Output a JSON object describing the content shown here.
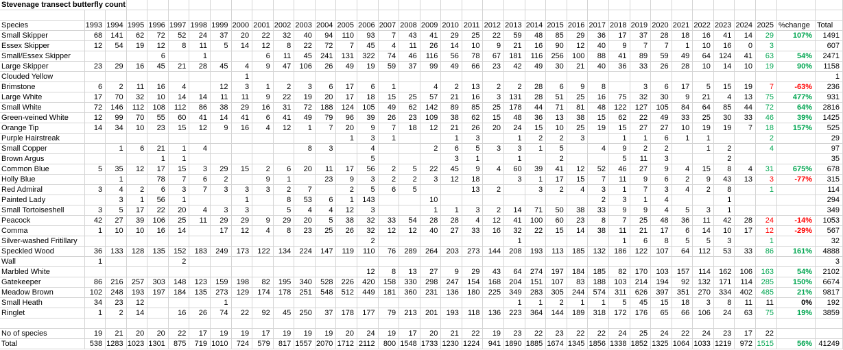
{
  "title": "Stevenage transect butterfly count",
  "header": {
    "species": "Species",
    "years": [
      "1993",
      "1994",
      "1995",
      "1996",
      "1997",
      "1998",
      "1999",
      "2000",
      "2001",
      "2002",
      "2003",
      "2004",
      "2005",
      "2006",
      "2007",
      "2008",
      "2009",
      "2010",
      "2011",
      "2012",
      "2013",
      "2014",
      "2015",
      "2016",
      "2017",
      "2018",
      "2019",
      "2020",
      "2021",
      "2022",
      "2023",
      "2024",
      "2025"
    ],
    "pct_change": "%change",
    "total": "Total"
  },
  "colors": {
    "positive": "#00a550",
    "negative": "#ff0000",
    "neutral": "#000000",
    "gridline": "#d4d4d4"
  },
  "species_rows": [
    {
      "name": "Small Skipper",
      "values": [
        68,
        141,
        62,
        72,
        52,
        24,
        37,
        20,
        22,
        32,
        40,
        94,
        110,
        93,
        7,
        43,
        41,
        29,
        25,
        22,
        59,
        48,
        85,
        29,
        36,
        17,
        37,
        28,
        18,
        16,
        41,
        14,
        29
      ],
      "pct": "107%",
      "total": 1491,
      "c25": "g"
    },
    {
      "name": "Essex Skipper",
      "values": [
        12,
        54,
        19,
        12,
        8,
        11,
        5,
        14,
        12,
        8,
        22,
        72,
        7,
        45,
        4,
        11,
        26,
        14,
        10,
        9,
        21,
        16,
        90,
        12,
        40,
        9,
        7,
        7,
        1,
        10,
        16,
        0,
        3
      ],
      "pct": "",
      "total": 607,
      "c25": "g"
    },
    {
      "name": "Small/Essex Skipper",
      "values": [
        "",
        "",
        "",
        6,
        "",
        1,
        "",
        "",
        6,
        11,
        45,
        241,
        131,
        322,
        74,
        46,
        116,
        56,
        78,
        67,
        181,
        116,
        256,
        100,
        88,
        41,
        89,
        59,
        49,
        64,
        124,
        41,
        63
      ],
      "pct": "54%",
      "total": 2471,
      "c25": "g"
    },
    {
      "name": "Large Skipper",
      "values": [
        23,
        29,
        16,
        45,
        21,
        28,
        45,
        4,
        9,
        47,
        106,
        26,
        49,
        19,
        59,
        37,
        99,
        49,
        66,
        23,
        42,
        49,
        30,
        21,
        40,
        36,
        33,
        26,
        28,
        10,
        14,
        10,
        19
      ],
      "pct": "90%",
      "total": 1158,
      "c25": "g"
    },
    {
      "name": "Clouded Yellow",
      "values": [
        "",
        "",
        "",
        "",
        "",
        "",
        "",
        1,
        "",
        "",
        "",
        "",
        "",
        "",
        "",
        "",
        "",
        "",
        "",
        "",
        "",
        "",
        "",
        "",
        "",
        "",
        "",
        "",
        "",
        "",
        "",
        "",
        ""
      ],
      "pct": "",
      "total": 1,
      "c25": ""
    },
    {
      "name": "Brimstone",
      "values": [
        6,
        2,
        11,
        16,
        4,
        "",
        12,
        3,
        1,
        2,
        3,
        6,
        17,
        6,
        1,
        "",
        4,
        2,
        13,
        2,
        2,
        28,
        6,
        9,
        8,
        "",
        3,
        6,
        17,
        5,
        15,
        19,
        7
      ],
      "pct": "-63%",
      "total": 236,
      "c25": "r"
    },
    {
      "name": "Large White",
      "values": [
        17,
        70,
        32,
        10,
        14,
        14,
        11,
        11,
        9,
        22,
        19,
        20,
        17,
        18,
        15,
        25,
        57,
        21,
        16,
        3,
        131,
        28,
        51,
        25,
        16,
        75,
        32,
        30,
        9,
        21,
        4,
        13,
        75
      ],
      "pct": "477%",
      "total": 931,
      "c25": "g"
    },
    {
      "name": "Small White",
      "values": [
        72,
        146,
        112,
        108,
        112,
        86,
        38,
        29,
        16,
        31,
        72,
        188,
        124,
        105,
        49,
        62,
        142,
        89,
        85,
        25,
        178,
        44,
        71,
        81,
        48,
        122,
        127,
        105,
        84,
        64,
        85,
        44,
        72
      ],
      "pct": "64%",
      "total": 2816,
      "c25": "g"
    },
    {
      "name": "Green-veined White",
      "values": [
        12,
        99,
        70,
        55,
        60,
        41,
        14,
        41,
        6,
        41,
        49,
        79,
        96,
        39,
        26,
        23,
        109,
        38,
        62,
        15,
        48,
        36,
        13,
        38,
        15,
        62,
        22,
        49,
        33,
        25,
        30,
        33,
        46
      ],
      "pct": "39%",
      "total": 1425,
      "c25": "g"
    },
    {
      "name": "Orange Tip",
      "values": [
        14,
        34,
        10,
        23,
        15,
        12,
        9,
        16,
        4,
        12,
        1,
        7,
        20,
        9,
        7,
        18,
        12,
        21,
        26,
        20,
        24,
        15,
        10,
        25,
        19,
        15,
        27,
        27,
        10,
        19,
        19,
        7,
        18
      ],
      "pct": "157%",
      "total": 525,
      "c25": "g"
    },
    {
      "name": "Purple Hairstreak",
      "values": [
        "",
        "",
        "",
        "",
        "",
        "",
        "",
        "",
        "",
        "",
        "",
        "",
        1,
        3,
        1,
        "",
        "",
        1,
        3,
        "",
        1,
        2,
        2,
        3,
        "",
        1,
        1,
        6,
        1,
        1,
        "",
        "",
        2
      ],
      "pct": "",
      "total": 29,
      "c25": "g"
    },
    {
      "name": "Small Copper",
      "values": [
        "",
        1,
        6,
        21,
        1,
        4,
        "",
        "",
        "",
        "",
        8,
        3,
        "",
        4,
        "",
        "",
        2,
        6,
        5,
        3,
        3,
        1,
        5,
        "",
        4,
        9,
        2,
        2,
        "",
        1,
        2,
        "",
        4
      ],
      "pct": "",
      "total": 97,
      "c25": "g"
    },
    {
      "name": "Brown Argus",
      "values": [
        "",
        "",
        "",
        1,
        1,
        "",
        "",
        "",
        "",
        "",
        "",
        "",
        "",
        5,
        "",
        "",
        "",
        3,
        1,
        "",
        1,
        "",
        2,
        "",
        "",
        5,
        11,
        3,
        "",
        "",
        2,
        "",
        ""
      ],
      "pct": "",
      "total": 35,
      "c25": ""
    },
    {
      "name": "Common Blue",
      "values": [
        5,
        35,
        12,
        17,
        15,
        3,
        29,
        15,
        2,
        6,
        20,
        11,
        17,
        56,
        2,
        5,
        22,
        45,
        9,
        4,
        60,
        39,
        41,
        12,
        52,
        46,
        27,
        9,
        4,
        15,
        8,
        4,
        31
      ],
      "pct": "675%",
      "total": 678,
      "c25": "g"
    },
    {
      "name": "Holly Blue",
      "values": [
        "",
        1,
        "",
        78,
        7,
        6,
        2,
        "",
        9,
        1,
        "",
        23,
        9,
        3,
        2,
        2,
        3,
        12,
        18,
        "",
        3,
        1,
        17,
        15,
        7,
        11,
        9,
        6,
        2,
        9,
        43,
        13,
        3
      ],
      "pct": "-77%",
      "total": 315,
      "c25": "r"
    },
    {
      "name": "Red Admiral",
      "values": [
        3,
        4,
        2,
        6,
        3,
        7,
        3,
        3,
        3,
        2,
        7,
        "",
        2,
        5,
        6,
        5,
        "",
        "",
        13,
        2,
        "",
        3,
        2,
        4,
        3,
        1,
        7,
        3,
        4,
        2,
        8,
        "",
        1
      ],
      "pct": "",
      "total": 114,
      "c25": "g"
    },
    {
      "name": "Painted Lady",
      "values": [
        "",
        3,
        1,
        56,
        1,
        "",
        "",
        1,
        "",
        8,
        53,
        6,
        1,
        143,
        "",
        "",
        10,
        "",
        "",
        "",
        "",
        "",
        "",
        "",
        2,
        3,
        1,
        4,
        "",
        "",
        1,
        "",
        ""
      ],
      "pct": "",
      "total": 294,
      "c25": ""
    },
    {
      "name": "Small Tortoiseshell",
      "values": [
        3,
        5,
        17,
        22,
        20,
        4,
        3,
        3,
        "",
        5,
        4,
        4,
        12,
        3,
        "",
        "",
        1,
        1,
        3,
        2,
        14,
        71,
        50,
        38,
        33,
        9,
        9,
        4,
        5,
        3,
        1,
        "",
        ""
      ],
      "pct": "",
      "total": 349,
      "c25": ""
    },
    {
      "name": "Peacock",
      "values": [
        42,
        27,
        39,
        106,
        25,
        11,
        29,
        29,
        9,
        29,
        20,
        5,
        38,
        32,
        33,
        54,
        28,
        28,
        4,
        12,
        41,
        100,
        60,
        23,
        8,
        7,
        25,
        48,
        36,
        11,
        42,
        28,
        24
      ],
      "pct": "-14%",
      "total": 1053,
      "c25": "r"
    },
    {
      "name": "Comma",
      "values": [
        1,
        10,
        10,
        16,
        14,
        "",
        17,
        12,
        4,
        8,
        23,
        25,
        26,
        32,
        12,
        12,
        40,
        27,
        33,
        16,
        32,
        22,
        15,
        14,
        38,
        11,
        21,
        17,
        6,
        14,
        10,
        17,
        12
      ],
      "pct": "-29%",
      "total": 567,
      "c25": "r"
    },
    {
      "name": "Silver-washed Fritillary",
      "values": [
        "",
        "",
        "",
        "",
        "",
        "",
        "",
        "",
        "",
        "",
        "",
        "",
        "",
        2,
        "",
        "",
        "",
        "",
        "",
        "",
        1,
        "",
        "",
        "",
        "",
        1,
        6,
        8,
        5,
        5,
        3,
        "",
        1
      ],
      "pct": "",
      "total": 32,
      "c25": "g"
    },
    {
      "name": "Speckled Wood",
      "values": [
        36,
        133,
        128,
        135,
        152,
        183,
        249,
        173,
        122,
        134,
        224,
        147,
        119,
        110,
        76,
        289,
        264,
        203,
        273,
        144,
        208,
        193,
        113,
        185,
        132,
        186,
        122,
        107,
        64,
        112,
        53,
        33,
        86
      ],
      "pct": "161%",
      "total": 4888,
      "c25": "g"
    },
    {
      "name": "Wall",
      "values": [
        1,
        "",
        "",
        "",
        2,
        "",
        "",
        "",
        "",
        "",
        "",
        "",
        "",
        "",
        "",
        "",
        "",
        "",
        "",
        "",
        "",
        "",
        "",
        "",
        "",
        "",
        "",
        "",
        "",
        "",
        "",
        "",
        ""
      ],
      "pct": "",
      "total": 3,
      "c25": ""
    },
    {
      "name": "Marbled White",
      "values": [
        "",
        "",
        "",
        "",
        "",
        "",
        "",
        "",
        "",
        "",
        "",
        "",
        "",
        12,
        8,
        13,
        27,
        9,
        29,
        43,
        64,
        274,
        197,
        184,
        185,
        82,
        170,
        103,
        157,
        114,
        162,
        106,
        163
      ],
      "pct": "54%",
      "total": 2102,
      "c25": "g"
    },
    {
      "name": "Gatekeeper",
      "values": [
        86,
        216,
        257,
        303,
        148,
        123,
        159,
        198,
        82,
        195,
        340,
        528,
        226,
        420,
        158,
        330,
        298,
        247,
        154,
        168,
        204,
        151,
        107,
        83,
        188,
        103,
        214,
        194,
        92,
        132,
        171,
        114,
        285
      ],
      "pct": "150%",
      "total": 6674,
      "c25": "g"
    },
    {
      "name": "Meadow Brown",
      "values": [
        102,
        248,
        193,
        197,
        184,
        135,
        273,
        129,
        174,
        178,
        251,
        548,
        512,
        449,
        181,
        360,
        231,
        136,
        180,
        225,
        349,
        283,
        305,
        244,
        574,
        311,
        626,
        397,
        351,
        270,
        334,
        402,
        485
      ],
      "pct": "21%",
      "total": 9817,
      "c25": "g"
    },
    {
      "name": "Small Heath",
      "values": [
        34,
        23,
        12,
        "",
        "",
        "",
        1,
        "",
        "",
        "",
        "",
        "",
        "",
        "",
        "",
        "",
        "",
        "",
        "",
        "",
        1,
        1,
        2,
        1,
        1,
        5,
        45,
        15,
        18,
        3,
        8,
        11,
        11
      ],
      "pct": "0%",
      "total": 192,
      "c25": "k"
    },
    {
      "name": "Ringlet",
      "values": [
        1,
        2,
        14,
        "",
        16,
        26,
        74,
        22,
        92,
        45,
        250,
        37,
        178,
        177,
        79,
        213,
        201,
        193,
        118,
        136,
        223,
        364,
        144,
        189,
        318,
        172,
        176,
        65,
        66,
        106,
        24,
        63,
        75
      ],
      "pct": "19%",
      "total": 3859,
      "c25": "g"
    }
  ],
  "summary_rows": [
    {
      "name": "No of species",
      "values": [
        19,
        21,
        20,
        20,
        22,
        17,
        19,
        19,
        17,
        19,
        19,
        19,
        20,
        24,
        19,
        17,
        20,
        21,
        22,
        19,
        23,
        22,
        23,
        22,
        22,
        24,
        25,
        24,
        22,
        24,
        23,
        17,
        22
      ],
      "pct": "",
      "total": "",
      "c25": "k"
    },
    {
      "name": "Total",
      "values": [
        538,
        1283,
        1023,
        1301,
        875,
        719,
        1010,
        724,
        579,
        817,
        1557,
        2070,
        1712,
        2112,
        800,
        1548,
        1733,
        1230,
        1224,
        941,
        1890,
        1885,
        1674,
        1345,
        1856,
        1338,
        1852,
        1325,
        1064,
        1033,
        1219,
        972,
        1515
      ],
      "pct": "56%",
      "total": 41249,
      "c25": "g"
    }
  ]
}
